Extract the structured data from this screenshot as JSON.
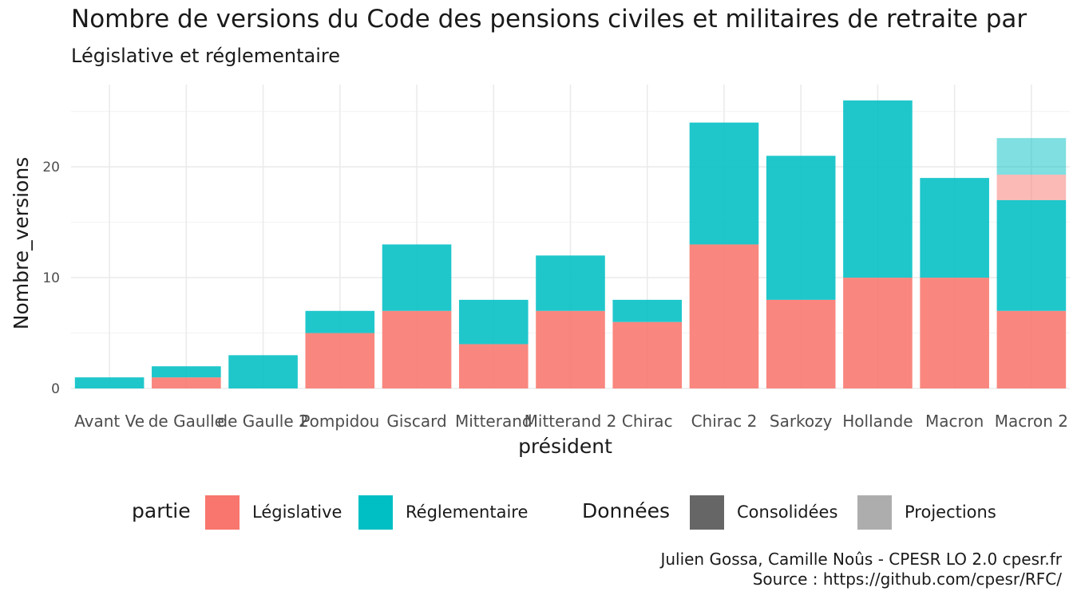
{
  "chart_data": {
    "type": "bar",
    "stacked": true,
    "title": "Nombre de versions du Code des pensions civiles et militaires de retraite par",
    "subtitle": "Législative et réglementaire",
    "xlabel": "président",
    "ylabel": "Nombre_versions",
    "ylim": [
      0,
      27
    ],
    "yticks": [
      0,
      10,
      20
    ],
    "grid": true,
    "categories": [
      "Avant Ve",
      "de Gaulle",
      "de Gaulle 2",
      "Pompidou",
      "Giscard",
      "Mitterand",
      "Mitterand 2",
      "Chirac",
      "Chirac 2",
      "Sarkozy",
      "Hollande",
      "Macron",
      "Macron 2"
    ],
    "series": [
      {
        "name": "Législative",
        "partie": "Législative",
        "donnees": "Consolidées",
        "color": "#F8766D",
        "values": [
          0,
          1,
          0,
          5,
          7,
          4,
          7,
          6,
          13,
          8,
          10,
          10,
          7
        ]
      },
      {
        "name": "Réglementaire",
        "partie": "Réglementaire",
        "donnees": "Consolidées",
        "color": "#00BFC4",
        "values": [
          1,
          1,
          3,
          2,
          6,
          4,
          5,
          2,
          11,
          13,
          16,
          9,
          10
        ]
      },
      {
        "name": "Législative",
        "partie": "Législative",
        "donnees": "Projections",
        "color": "#F8766D",
        "values": [
          0,
          0,
          0,
          0,
          0,
          0,
          0,
          0,
          0,
          0,
          0,
          0,
          2.3
        ]
      },
      {
        "name": "Réglementaire",
        "partie": "Réglementaire",
        "donnees": "Projections",
        "color": "#00BFC4",
        "values": [
          0,
          0,
          0,
          0,
          0,
          0,
          0,
          0,
          0,
          0,
          0,
          0,
          3.3
        ]
      }
    ],
    "legend": {
      "position": "bottom",
      "partie": {
        "title": "partie",
        "items": [
          {
            "label": "Législative",
            "color": "#F8766D"
          },
          {
            "label": "Réglementaire",
            "color": "#00BFC4"
          }
        ]
      },
      "donnees": {
        "title": "Données",
        "items": [
          {
            "label": "Consolidées",
            "color": "#666666"
          },
          {
            "label": "Projections",
            "color": "#ADADAD"
          }
        ]
      }
    }
  },
  "caption": {
    "line1": "Julien Gossa, Camille Noûs - CPESR LO 2.0 cpesr.fr",
    "line2": "Source : https://github.com/cpesr/RFC/"
  }
}
